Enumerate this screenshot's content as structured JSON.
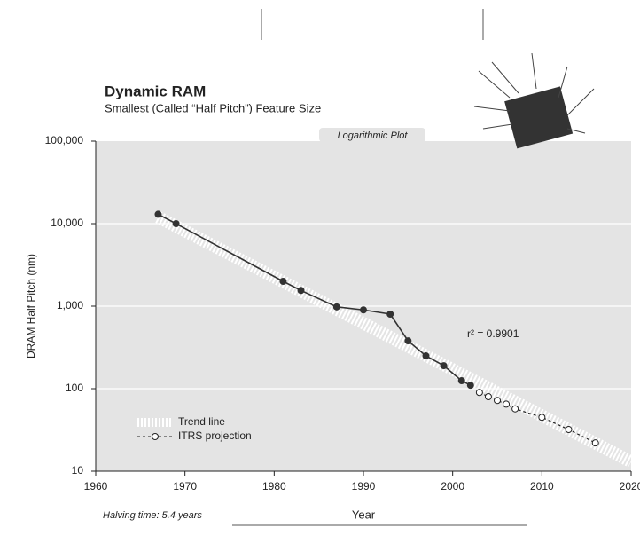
{
  "chart_data": {
    "type": "line",
    "title": "Dynamic RAM",
    "subtitle": "Smallest (Called “Half Pitch”) Feature Size",
    "plot_label": "Logarithmic Plot",
    "xlabel": "Year",
    "ylabel": "DRAM Half Pitch (nm)",
    "annotation": "r² = 0.9901",
    "footnote": "Halving time: 5.4 years",
    "log_y": true,
    "grid": true,
    "legend": "lower left",
    "xlim": [
      1960,
      2020
    ],
    "xticks": [
      1960,
      1970,
      1980,
      1990,
      2000,
      2010,
      2020
    ],
    "ylim": [
      10,
      100000
    ],
    "yticks": [
      {
        "value": 100000,
        "label": "100,000"
      },
      {
        "value": 10000,
        "label": "10,000"
      },
      {
        "value": 1000,
        "label": "1,000"
      },
      100,
      10
    ],
    "series": [
      {
        "name": "Trend line",
        "color": "#ffffff",
        "x": [
          1967,
          2020
        ],
        "values": [
          12000,
          13
        ]
      },
      {
        "name": "ITRS projection",
        "color": "#222222",
        "x": [
          2003,
          2004,
          2005,
          2006,
          2007,
          2010,
          2013,
          2016
        ],
        "values": [
          90,
          80,
          72,
          65,
          57,
          45,
          32,
          22
        ]
      },
      {
        "x": [
          1967,
          1969,
          1981,
          1983,
          1987,
          1990,
          1993,
          1995,
          1997,
          1999,
          2001,
          2002
        ],
        "values": [
          13000,
          10000,
          2000,
          1550,
          980,
          900,
          800,
          380,
          250,
          190,
          125,
          110
        ],
        "color": "#333333"
      }
    ]
  }
}
